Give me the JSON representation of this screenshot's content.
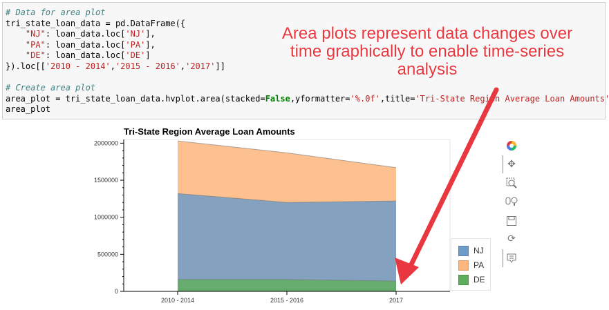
{
  "code_cell": {
    "lines": [
      {
        "segments": [
          {
            "t": "# Data for area plot",
            "c": "cm"
          }
        ]
      },
      {
        "segments": [
          {
            "t": "tri_state_loan_data = pd.DataFrame({",
            "c": ""
          }
        ]
      },
      {
        "segments": [
          {
            "t": "    ",
            "c": ""
          },
          {
            "t": "\"NJ\"",
            "c": "st"
          },
          {
            "t": ": loan_data.loc[",
            "c": ""
          },
          {
            "t": "'NJ'",
            "c": "st"
          },
          {
            "t": "],",
            "c": ""
          }
        ]
      },
      {
        "segments": [
          {
            "t": "    ",
            "c": ""
          },
          {
            "t": "\"PA\"",
            "c": "st"
          },
          {
            "t": ": loan_data.loc[",
            "c": ""
          },
          {
            "t": "'PA'",
            "c": "st"
          },
          {
            "t": "],",
            "c": ""
          }
        ]
      },
      {
        "segments": [
          {
            "t": "    ",
            "c": ""
          },
          {
            "t": "\"DE\"",
            "c": "st"
          },
          {
            "t": ": loan_data.loc[",
            "c": ""
          },
          {
            "t": "'DE'",
            "c": "st"
          },
          {
            "t": "]",
            "c": ""
          }
        ]
      },
      {
        "segments": [
          {
            "t": "}).loc[[",
            "c": ""
          },
          {
            "t": "'2010 - 2014'",
            "c": "st"
          },
          {
            "t": ",",
            "c": ""
          },
          {
            "t": "'2015 - 2016'",
            "c": "st"
          },
          {
            "t": ",",
            "c": ""
          },
          {
            "t": "'2017'",
            "c": "st"
          },
          {
            "t": "]]",
            "c": ""
          }
        ]
      },
      {
        "segments": [
          {
            "t": "",
            "c": ""
          }
        ]
      },
      {
        "segments": [
          {
            "t": "# Create area plot",
            "c": "cm"
          }
        ]
      },
      {
        "segments": [
          {
            "t": "area_plot = tri_state_loan_data.hvplot.area(stacked=",
            "c": ""
          },
          {
            "t": "False",
            "c": "kw"
          },
          {
            "t": ",yformatter=",
            "c": ""
          },
          {
            "t": "'%.0f'",
            "c": "st"
          },
          {
            "t": ",title=",
            "c": ""
          },
          {
            "t": "'Tri-State Region Average Loan Amounts'",
            "c": "st"
          },
          {
            "t": ")",
            "c": ""
          }
        ]
      },
      {
        "segments": [
          {
            "t": "area_plot",
            "c": ""
          }
        ]
      }
    ]
  },
  "annotation": {
    "text": "Area plots represent data changes over time graphically to enable time-series analysis",
    "color": "#e8373f"
  },
  "toolbar": {
    "icons": [
      "bokeh-logo-icon",
      "pan-icon",
      "box-zoom-icon",
      "wheel-zoom-icon",
      "save-icon",
      "reset-icon",
      "hover-icon"
    ]
  },
  "chart_data": {
    "type": "area",
    "title": "Tri-State Region Average Loan Amounts",
    "categories": [
      "2010 - 2014",
      "2015 - 2016",
      "2017"
    ],
    "stacked": false,
    "ylim": [
      0,
      2050000
    ],
    "yticks": [
      0,
      500000,
      1000000,
      1500000,
      2000000
    ],
    "ytick_labels": [
      "0",
      "500000",
      "1000000",
      "1500000",
      "2000000"
    ],
    "legend_position": "right",
    "series": [
      {
        "name": "NJ",
        "values": [
          1320000,
          1200000,
          1220000
        ],
        "color": "#30a2da"
      },
      {
        "name": "PA",
        "values": [
          2030000,
          1870000,
          1670000
        ],
        "color": "#fc4f30"
      },
      {
        "name": "DE",
        "values": [
          160000,
          160000,
          140000
        ],
        "color": "#e5ae38"
      }
    ],
    "display_colors": {
      "NJ": "#6f9bc8",
      "PA": "#fdb67c",
      "DE": "#5fae5f"
    }
  }
}
